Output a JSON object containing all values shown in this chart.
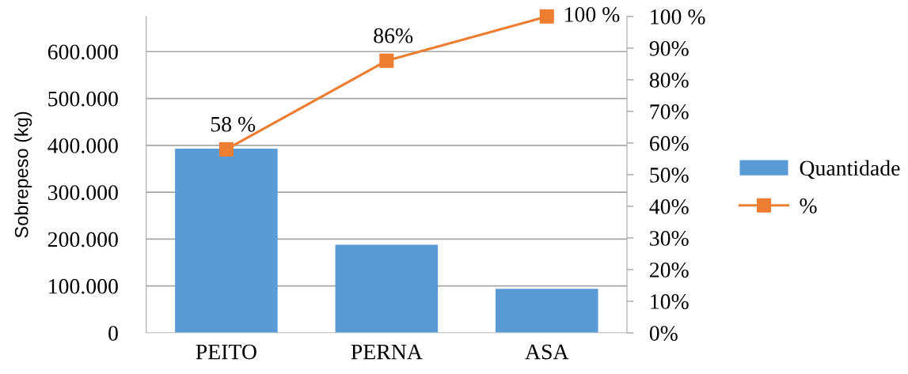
{
  "chart_data": {
    "type": "bar",
    "ylabel": "Sobrepeso (kg)",
    "categories": [
      "PEITO",
      "PERNA",
      "ASA"
    ],
    "series": [
      {
        "name": "Quantidade",
        "color": "#5b9bd5",
        "values": [
          393000,
          188000,
          94000
        ]
      },
      {
        "name": "%",
        "type": "line",
        "axis": "y2",
        "color": "#ed7d31",
        "values": [
          58,
          86,
          100
        ],
        "value_labels": [
          "58 %",
          "86%",
          "100 %"
        ]
      }
    ],
    "ylim": [
      0,
      675000
    ],
    "yticks": [
      {
        "value": 0,
        "label": "0"
      },
      {
        "value": 100000,
        "label": "100.000"
      },
      {
        "value": 200000,
        "label": "200.000"
      },
      {
        "value": 300000,
        "label": "300.000"
      },
      {
        "value": 400000,
        "label": "400.000"
      },
      {
        "value": 500000,
        "label": "500.000"
      },
      {
        "value": 600000,
        "label": "600.000"
      }
    ],
    "y2lim": [
      0,
      100
    ],
    "y2ticks": [
      {
        "value": 0,
        "label": "0%"
      },
      {
        "value": 10,
        "label": "10%"
      },
      {
        "value": 20,
        "label": "20%"
      },
      {
        "value": 30,
        "label": "30%"
      },
      {
        "value": 40,
        "label": "40%"
      },
      {
        "value": 50,
        "label": "50%"
      },
      {
        "value": 60,
        "label": "60%"
      },
      {
        "value": 70,
        "label": "70%"
      },
      {
        "value": 80,
        "label": "80%"
      },
      {
        "value": 90,
        "label": "90%"
      },
      {
        "value": 100,
        "label": "100 %"
      }
    ],
    "grid": "y",
    "legend": "right",
    "marker": "square",
    "line_style": "solid"
  }
}
